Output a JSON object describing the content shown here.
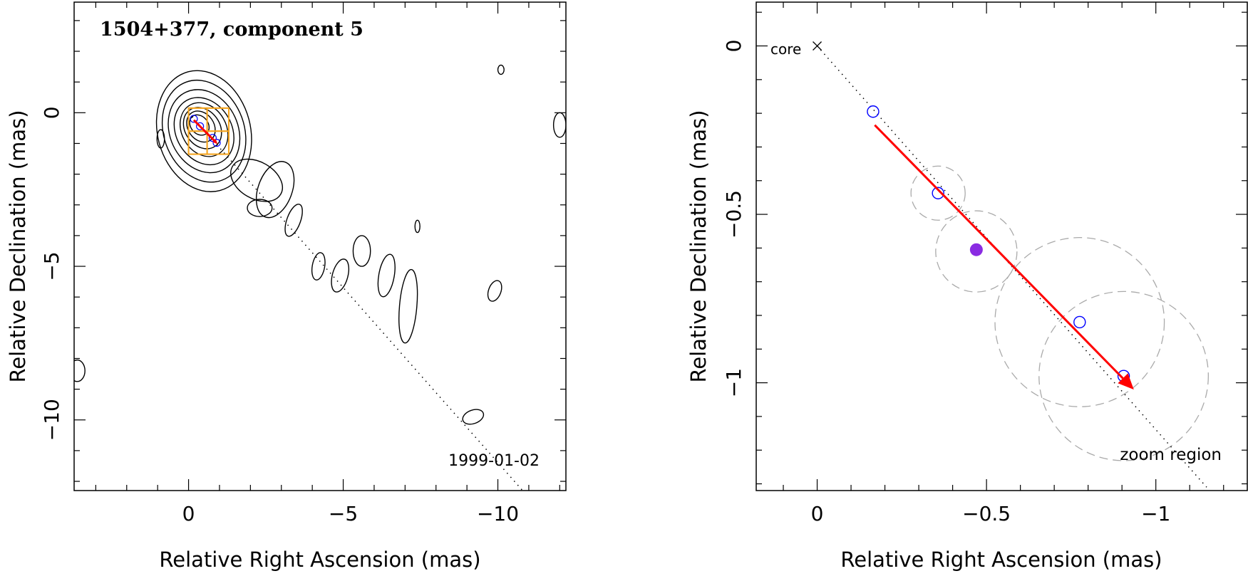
{
  "chart_data": [
    {
      "type": "contour",
      "title": "1504+377, component 5",
      "date_label": "1999-01-02",
      "xlabel": "Relative Right Ascension (mas)",
      "ylabel": "Relative Declination (mas)",
      "xlim": [
        3.7,
        -12.2
      ],
      "ylim": [
        -12.3,
        3.6
      ],
      "x_reversed": true,
      "x_ticks": [
        0,
        -5,
        -10
      ],
      "x_tick_labels": [
        "0",
        "−5",
        "−10"
      ],
      "y_ticks": [
        0,
        -5,
        -10
      ],
      "y_tick_labels": [
        "0",
        "−5",
        "−10"
      ],
      "jet_axis": {
        "from": [
          0,
          0
        ],
        "to": [
          -10.8,
          -12.3
        ]
      },
      "contours": [
        {
          "cx": -0.5,
          "cy": -0.6,
          "rx": 1.5,
          "ry": 2.0,
          "rot": -15
        },
        {
          "cx": -0.5,
          "cy": -0.6,
          "rx": 1.3,
          "ry": 1.7,
          "rot": -20
        },
        {
          "cx": -0.5,
          "cy": -0.6,
          "rx": 1.1,
          "ry": 1.4,
          "rot": -25
        },
        {
          "cx": -0.5,
          "cy": -0.6,
          "rx": 0.9,
          "ry": 1.15,
          "rot": -30
        },
        {
          "cx": -0.5,
          "cy": -0.55,
          "rx": 0.72,
          "ry": 0.92,
          "rot": -30
        },
        {
          "cx": -0.45,
          "cy": -0.5,
          "rx": 0.56,
          "ry": 0.72,
          "rot": -35
        },
        {
          "cx": -0.4,
          "cy": -0.45,
          "rx": 0.42,
          "ry": 0.54,
          "rot": -35
        },
        {
          "cx": -0.35,
          "cy": -0.4,
          "rx": 0.28,
          "ry": 0.36,
          "rot": -40
        },
        {
          "cx": -2.2,
          "cy": -2.2,
          "rx": 0.9,
          "ry": 0.6,
          "rot": 30
        },
        {
          "cx": -2.8,
          "cy": -2.5,
          "rx": 0.55,
          "ry": 0.95,
          "rot": 20
        },
        {
          "cx": -2.3,
          "cy": -3.1,
          "rx": 0.4,
          "ry": 0.28,
          "rot": 0
        },
        {
          "cx": -3.4,
          "cy": -3.5,
          "rx": 0.22,
          "ry": 0.55,
          "rot": 20
        },
        {
          "cx": -4.2,
          "cy": -5.0,
          "rx": 0.2,
          "ry": 0.45,
          "rot": 10
        },
        {
          "cx": -4.9,
          "cy": -5.3,
          "rx": 0.25,
          "ry": 0.55,
          "rot": 15
        },
        {
          "cx": -5.6,
          "cy": -4.5,
          "rx": 0.28,
          "ry": 0.5,
          "rot": 0
        },
        {
          "cx": -6.4,
          "cy": -5.3,
          "rx": 0.25,
          "ry": 0.7,
          "rot": 10
        },
        {
          "cx": -7.1,
          "cy": -6.3,
          "rx": 0.28,
          "ry": 1.2,
          "rot": 5
        },
        {
          "cx": -9.2,
          "cy": -9.9,
          "rx": 0.35,
          "ry": 0.22,
          "rot": -20
        },
        {
          "cx": 0.9,
          "cy": -0.85,
          "rx": 0.12,
          "ry": 0.3,
          "rot": 0
        },
        {
          "cx": -10.1,
          "cy": 1.4,
          "rx": 0.1,
          "ry": 0.15,
          "rot": 0
        },
        {
          "cx": -12.0,
          "cy": -0.4,
          "rx": 0.2,
          "ry": 0.4,
          "rot": 0
        },
        {
          "cx": 3.6,
          "cy": -8.4,
          "rx": 0.25,
          "ry": 0.35,
          "rot": 0
        },
        {
          "cx": -7.4,
          "cy": -3.7,
          "rx": 0.08,
          "ry": 0.2,
          "rot": 0
        },
        {
          "cx": -9.9,
          "cy": -5.8,
          "rx": 0.2,
          "ry": 0.35,
          "rot": 20
        }
      ],
      "zoom_boxes": [
        {
          "x0": 0,
          "x1": -1.3,
          "y0": 0.15,
          "y1": -1.35
        },
        {
          "x0": 0,
          "x1": -0.6,
          "y0": -0.6,
          "y1": 0.15
        },
        {
          "x0": -0.6,
          "x1": -1.3,
          "y0": -0.6,
          "y1": -1.35
        },
        {
          "x0": -0.6,
          "x1": -1.3,
          "y0": -0.6,
          "y1": 0.15
        },
        {
          "x0": 0,
          "x1": -0.6,
          "y0": -0.6,
          "y1": -1.35
        }
      ],
      "positions_rel_mas": [
        {
          "x": -0.17,
          "y": -0.2
        },
        {
          "x": -0.37,
          "y": -0.44
        },
        {
          "x": -0.78,
          "y": -0.82
        },
        {
          "x": -0.91,
          "y": -0.98
        }
      ],
      "motion_arrow": {
        "from": [
          -0.17,
          -0.24
        ],
        "to": [
          -0.94,
          -1.02
        ]
      },
      "colors": {
        "contour": "#000000",
        "zoom_box": "#f5a623",
        "arrow": "#ff0000",
        "position": "#0000ff"
      }
    },
    {
      "type": "scatter",
      "xlabel": "Relative Right Ascension (mas)",
      "ylabel": "Relative Declination (mas)",
      "xlim": [
        0.18,
        -1.27
      ],
      "ylim": [
        -1.32,
        0.13
      ],
      "x_reversed": true,
      "x_ticks": [
        0,
        -0.5,
        -1
      ],
      "x_tick_labels": [
        "0",
        "−0.5",
        "−1"
      ],
      "y_ticks": [
        0,
        -0.5,
        -1
      ],
      "y_tick_labels": [
        "0",
        "−0.5",
        "−1"
      ],
      "core_label": "core",
      "zoom_label": "zoom region",
      "core": {
        "x": 0,
        "y": 0
      },
      "jet_axis": {
        "from": [
          0,
          0
        ],
        "to": [
          -1.15,
          -1.31
        ]
      },
      "positions": [
        {
          "x": -0.165,
          "y": -0.195
        },
        {
          "x": -0.357,
          "y": -0.437
        },
        {
          "x": -0.775,
          "y": -0.82
        },
        {
          "x": -0.905,
          "y": -0.98
        }
      ],
      "error_circles": [
        {
          "x": -0.357,
          "y": -0.437,
          "r": 0.08
        },
        {
          "x": -0.47,
          "y": -0.61,
          "r": 0.12
        },
        {
          "x": -0.775,
          "y": -0.82,
          "r": 0.25
        },
        {
          "x": -0.905,
          "y": -0.98,
          "r": 0.25
        }
      ],
      "reference_point": {
        "x": -0.47,
        "y": -0.605
      },
      "motion_arrow": {
        "from": [
          -0.17,
          -0.235
        ],
        "to": [
          -0.935,
          -1.02
        ]
      },
      "colors": {
        "position": "#0000ff",
        "reference_point": "#8a2be2",
        "arrow": "#ff0000",
        "error_circle": "#aaaaaa",
        "axis_line": "#000000"
      }
    }
  ]
}
